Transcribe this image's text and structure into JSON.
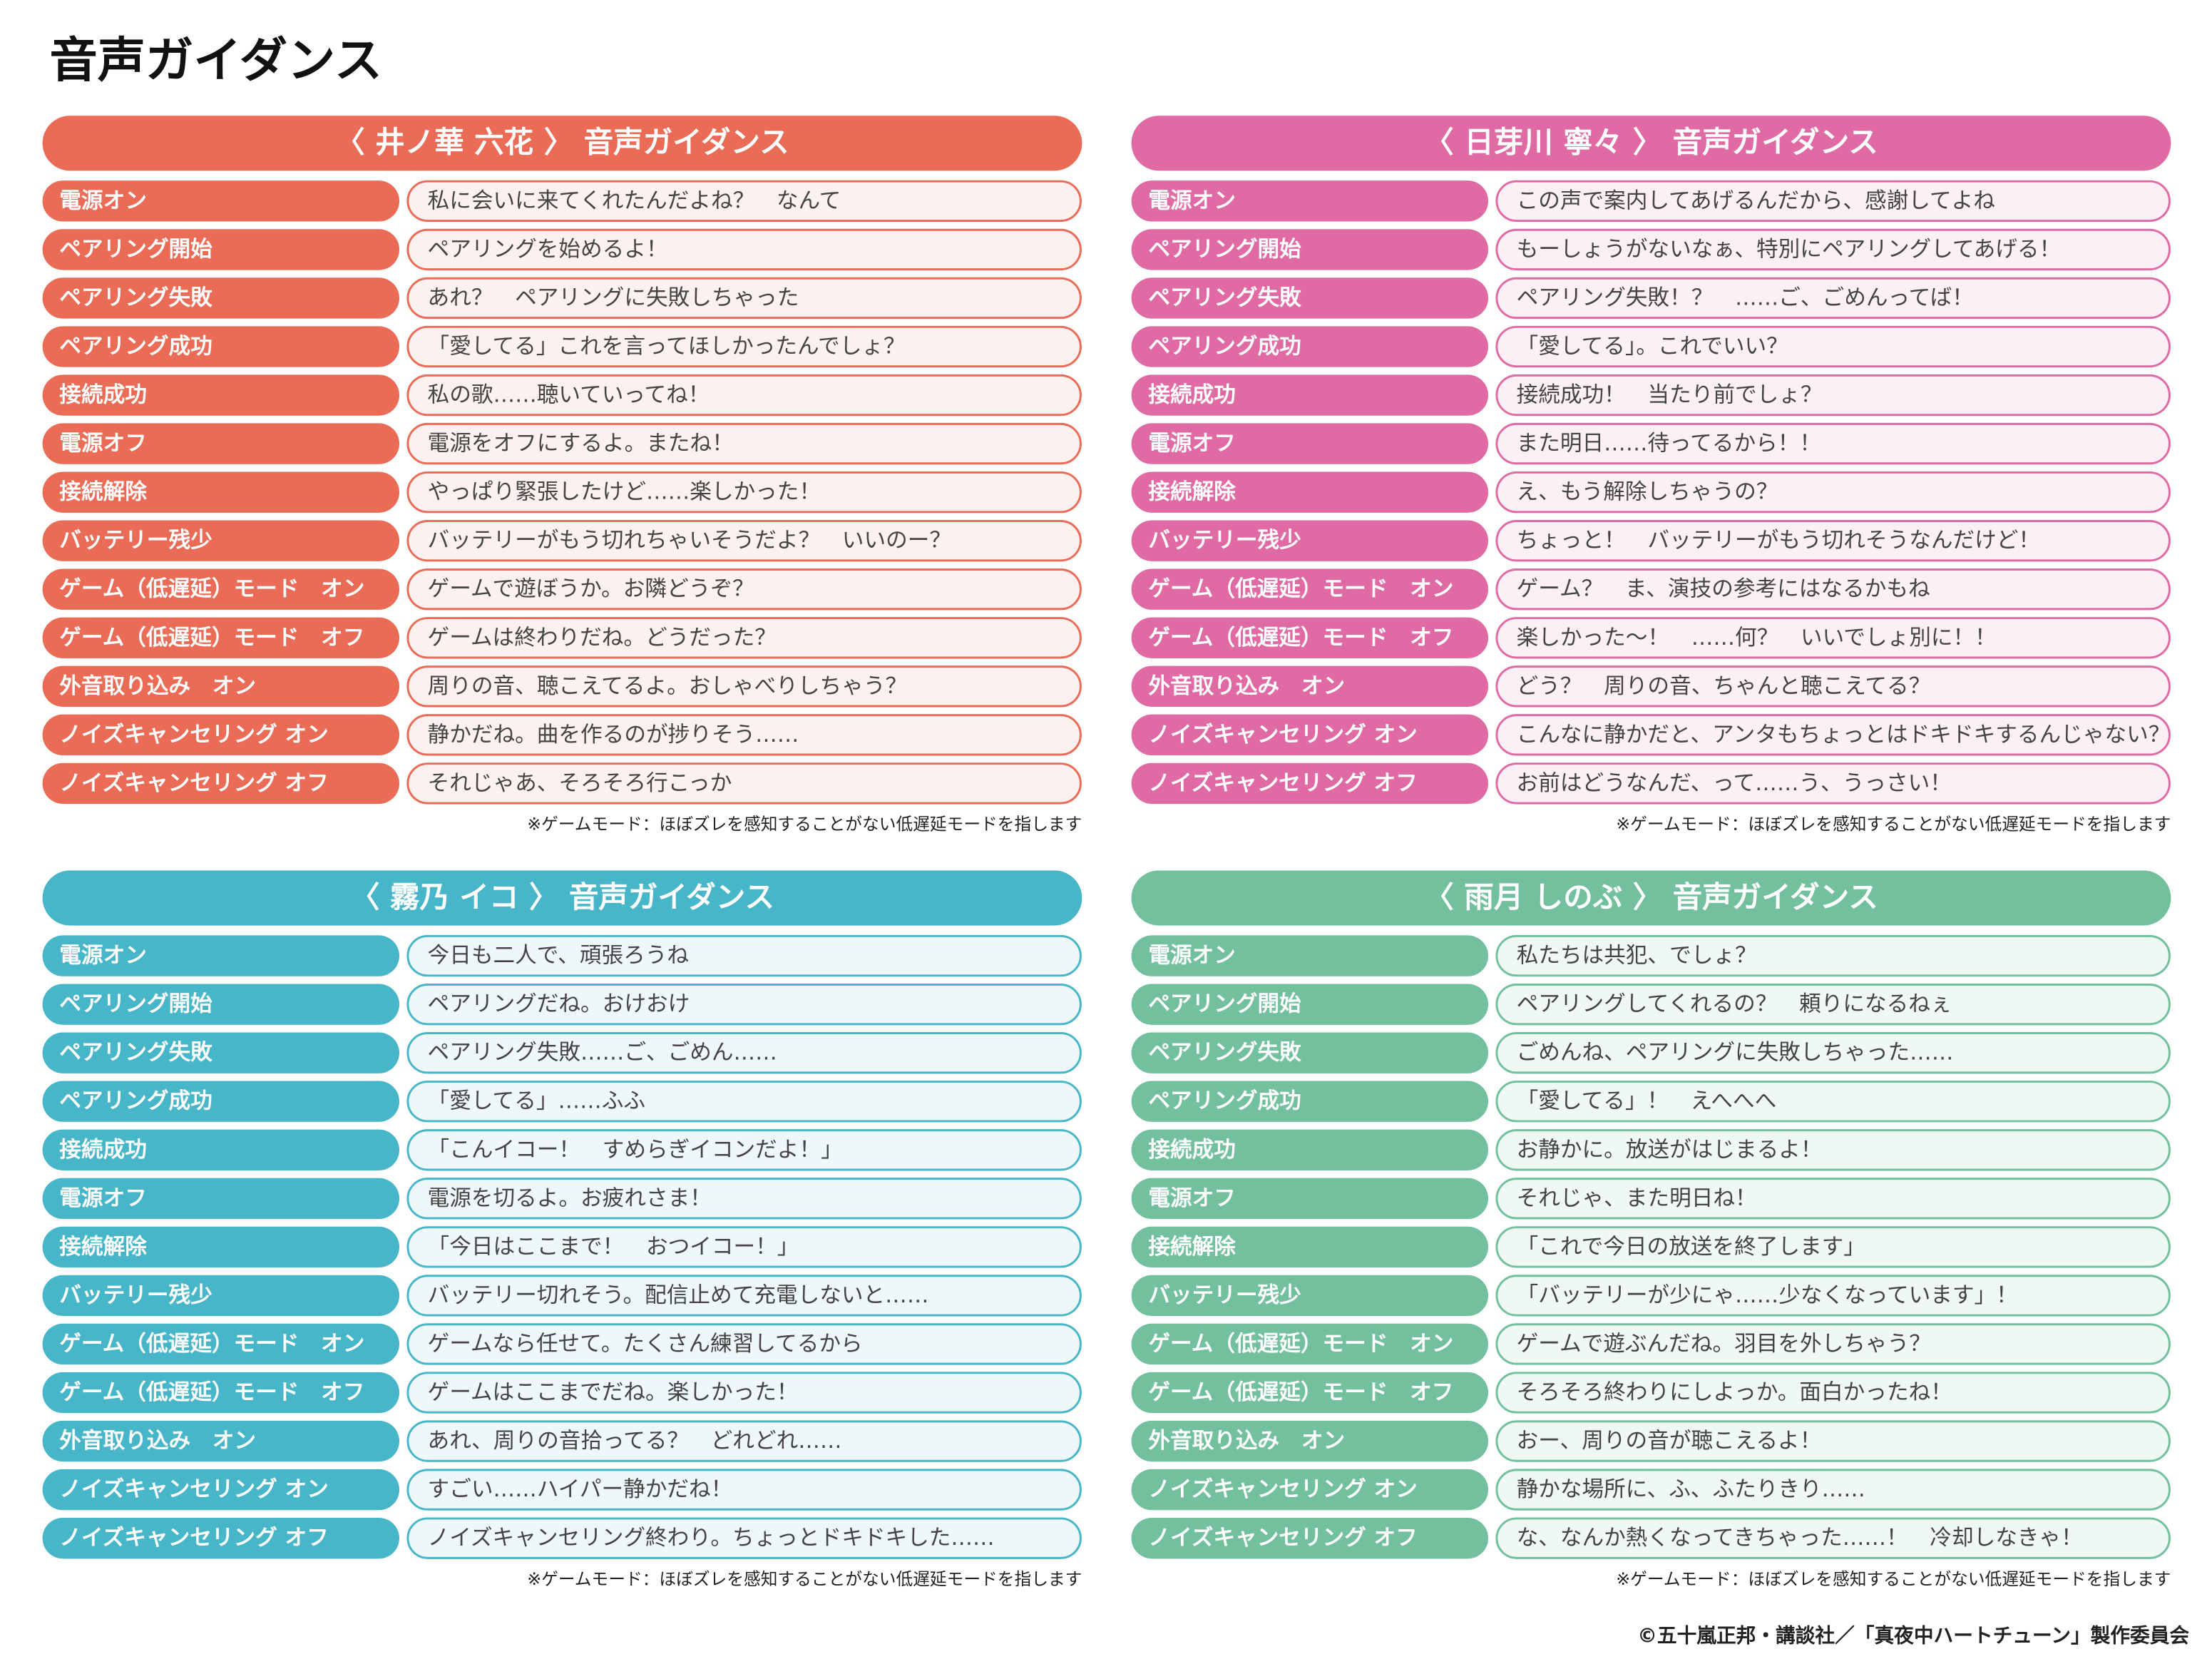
{
  "title": "音声ガイダンス",
  "panels": [
    {
      "title": "〈 井ノ華 六花 〉 音声ガイダンス",
      "rows": [
        [
          "電源オン",
          "私に会いに来てくれたんだよね？　なんて"
        ],
        [
          "ペアリング開始",
          "ペアリングを始めるよ！"
        ],
        [
          "ペアリング失敗",
          "あれ？　ペアリングに失敗しちゃった"
        ],
        [
          "ペアリング成功",
          "「愛してる」これを言ってほしかったんでしょ？"
        ],
        [
          "接続成功",
          "私の歌……聴いていってね！"
        ],
        [
          "電源オフ",
          "電源をオフにするよ。またね！"
        ],
        [
          "接続解除",
          "やっぱり緊張したけど……楽しかった！"
        ],
        [
          "バッテリー残少",
          "バッテリーがもう切れちゃいそうだよ？　いいのー？"
        ],
        [
          "ゲーム（低遅延）モード　オン",
          "ゲームで遊ぼうか。お隣どうぞ？"
        ],
        [
          "ゲーム（低遅延）モード　オフ",
          "ゲームは終わりだね。どうだった？"
        ],
        [
          "外音取り込み　オン",
          "周りの音、聴こえてるよ。おしゃべりしちゃう？"
        ],
        [
          "ノイズキャンセリング オン",
          "静かだね。曲を作るのが捗りそう……"
        ],
        [
          "ノイズキャンセリング オフ",
          "それじゃあ、そろそろ行こっか"
        ]
      ],
      "note": "※ゲームモード：ほぼズレを感知することがない低遅延モードを指します"
    },
    {
      "title": "〈 日芽川 寧々 〉 音声ガイダンス",
      "rows": [
        [
          "電源オン",
          "この声で案内してあげるんだから、感謝してよね"
        ],
        [
          "ペアリング開始",
          "もーしょうがないなぁ、特別にペアリングしてあげる！"
        ],
        [
          "ペアリング失敗",
          "ペアリング失敗！？　……ご、ごめんってば！"
        ],
        [
          "ペアリング成功",
          "「愛してる」。これでいい？"
        ],
        [
          "接続成功",
          "接続成功！　当たり前でしょ？"
        ],
        [
          "電源オフ",
          "また明日……待ってるから！！"
        ],
        [
          "接続解除",
          "え、もう解除しちゃうの？"
        ],
        [
          "バッテリー残少",
          "ちょっと！　バッテリーがもう切れそうなんだけど！"
        ],
        [
          "ゲーム（低遅延）モード　オン",
          "ゲーム？　ま、演技の参考にはなるかもね"
        ],
        [
          "ゲーム（低遅延）モード　オフ",
          "楽しかった～！　……何？　いいでしょ別に！！"
        ],
        [
          "外音取り込み　オン",
          "どう？　周りの音、ちゃんと聴こえてる？"
        ],
        [
          "ノイズキャンセリング オン",
          "こんなに静かだと、アンタもちょっとはドキドキするんじゃない？"
        ],
        [
          "ノイズキャンセリング オフ",
          "お前はどうなんだ、って……う、うっさい！"
        ]
      ],
      "note": "※ゲームモード：ほぼズレを感知することがない低遅延モードを指します"
    },
    {
      "title": "〈 霧乃 イコ 〉 音声ガイダンス",
      "rows": [
        [
          "電源オン",
          "今日も二人で、頑張ろうね"
        ],
        [
          "ペアリング開始",
          "ペアリングだね。おけおけ"
        ],
        [
          "ペアリング失敗",
          "ペアリング失敗……ご、ごめん……"
        ],
        [
          "ペアリング成功",
          "「愛してる」……ふふ"
        ],
        [
          "接続成功",
          "「こんイコー！　すめらぎイコンだよ！」"
        ],
        [
          "電源オフ",
          "電源を切るよ。お疲れさま！"
        ],
        [
          "接続解除",
          "「今日はここまで！　おつイコー！」"
        ],
        [
          "バッテリー残少",
          "バッテリー切れそう。配信止めて充電しないと……"
        ],
        [
          "ゲーム（低遅延）モード　オン",
          "ゲームなら任せて。たくさん練習してるから"
        ],
        [
          "ゲーム（低遅延）モード　オフ",
          "ゲームはここまでだね。楽しかった！"
        ],
        [
          "外音取り込み　オン",
          "あれ、周りの音拾ってる？　どれどれ……"
        ],
        [
          "ノイズキャンセリング オン",
          "すごい……ハイパー静かだね！"
        ],
        [
          "ノイズキャンセリング オフ",
          "ノイズキャンセリング終わり。ちょっとドキドキした……"
        ]
      ],
      "note": "※ゲームモード：ほぼズレを感知することがない低遅延モードを指します"
    },
    {
      "title": "〈 雨月 しのぶ 〉 音声ガイダンス",
      "rows": [
        [
          "電源オン",
          "私たちは共犯、でしょ？"
        ],
        [
          "ペアリング開始",
          "ペアリングしてくれるの？　頼りになるねぇ"
        ],
        [
          "ペアリング失敗",
          "ごめんね、ペアリングに失敗しちゃった……"
        ],
        [
          "ペアリング成功",
          "「愛してる」！　えへへへ"
        ],
        [
          "接続成功",
          "お静かに。放送がはじまるよ！"
        ],
        [
          "電源オフ",
          "それじゃ、また明日ね！"
        ],
        [
          "接続解除",
          "「これで今日の放送を終了します」"
        ],
        [
          "バッテリー残少",
          "「バッテリーが少にゃ……少なくなっています」！"
        ],
        [
          "ゲーム（低遅延）モード　オン",
          "ゲームで遊ぶんだね。羽目を外しちゃう？"
        ],
        [
          "ゲーム（低遅延）モード　オフ",
          "そろそろ終わりにしよっか。面白かったね！"
        ],
        [
          "外音取り込み　オン",
          "おー、周りの音が聴こえるよ！"
        ],
        [
          "ノイズキャンセリング オン",
          "静かな場所に、ふ、ふたりきり……"
        ],
        [
          "ノイズキャンセリング オフ",
          "な、なんか熱くなってきちゃった……！　冷却しなきゃ！"
        ]
      ],
      "note": "※ゲームモード：ほぼズレを感知することがない低遅延モードを指します"
    }
  ],
  "copyright": "©五十嵐正邦・講談社／「真夜中ハートチューン」製作委員会"
}
